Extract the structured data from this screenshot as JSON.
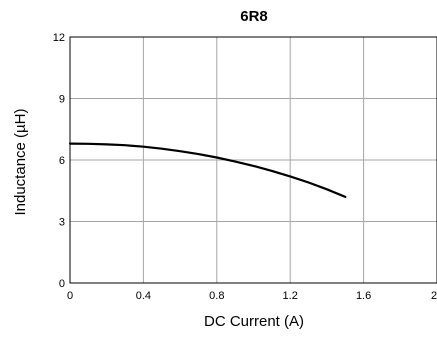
{
  "chart_data": {
    "type": "line",
    "title": "6R8",
    "xlabel": "DC Current (A)",
    "ylabel": "Inductance (µH)",
    "xlim": [
      0,
      2
    ],
    "ylim": [
      0,
      12
    ],
    "x_ticks": [
      0,
      0.4,
      0.8,
      1.2,
      1.6,
      2
    ],
    "x_tick_labels": [
      "0",
      "0.4",
      "0.8",
      "1.2",
      "1.6",
      "2"
    ],
    "y_ticks": [
      0,
      3,
      6,
      9,
      12
    ],
    "y_tick_labels": [
      "0",
      "3",
      "6",
      "9",
      "12"
    ],
    "grid": true,
    "legend": "none",
    "series": [
      {
        "color": "#000000",
        "x": [
          0,
          0.1,
          0.2,
          0.3,
          0.4,
          0.5,
          0.6,
          0.7,
          0.8,
          0.9,
          1.0,
          1.1,
          1.2,
          1.3,
          1.4,
          1.5
        ],
        "y": [
          6.8,
          6.79,
          6.76,
          6.72,
          6.65,
          6.55,
          6.43,
          6.29,
          6.12,
          5.92,
          5.71,
          5.47,
          5.2,
          4.9,
          4.57,
          4.2
        ]
      }
    ]
  }
}
